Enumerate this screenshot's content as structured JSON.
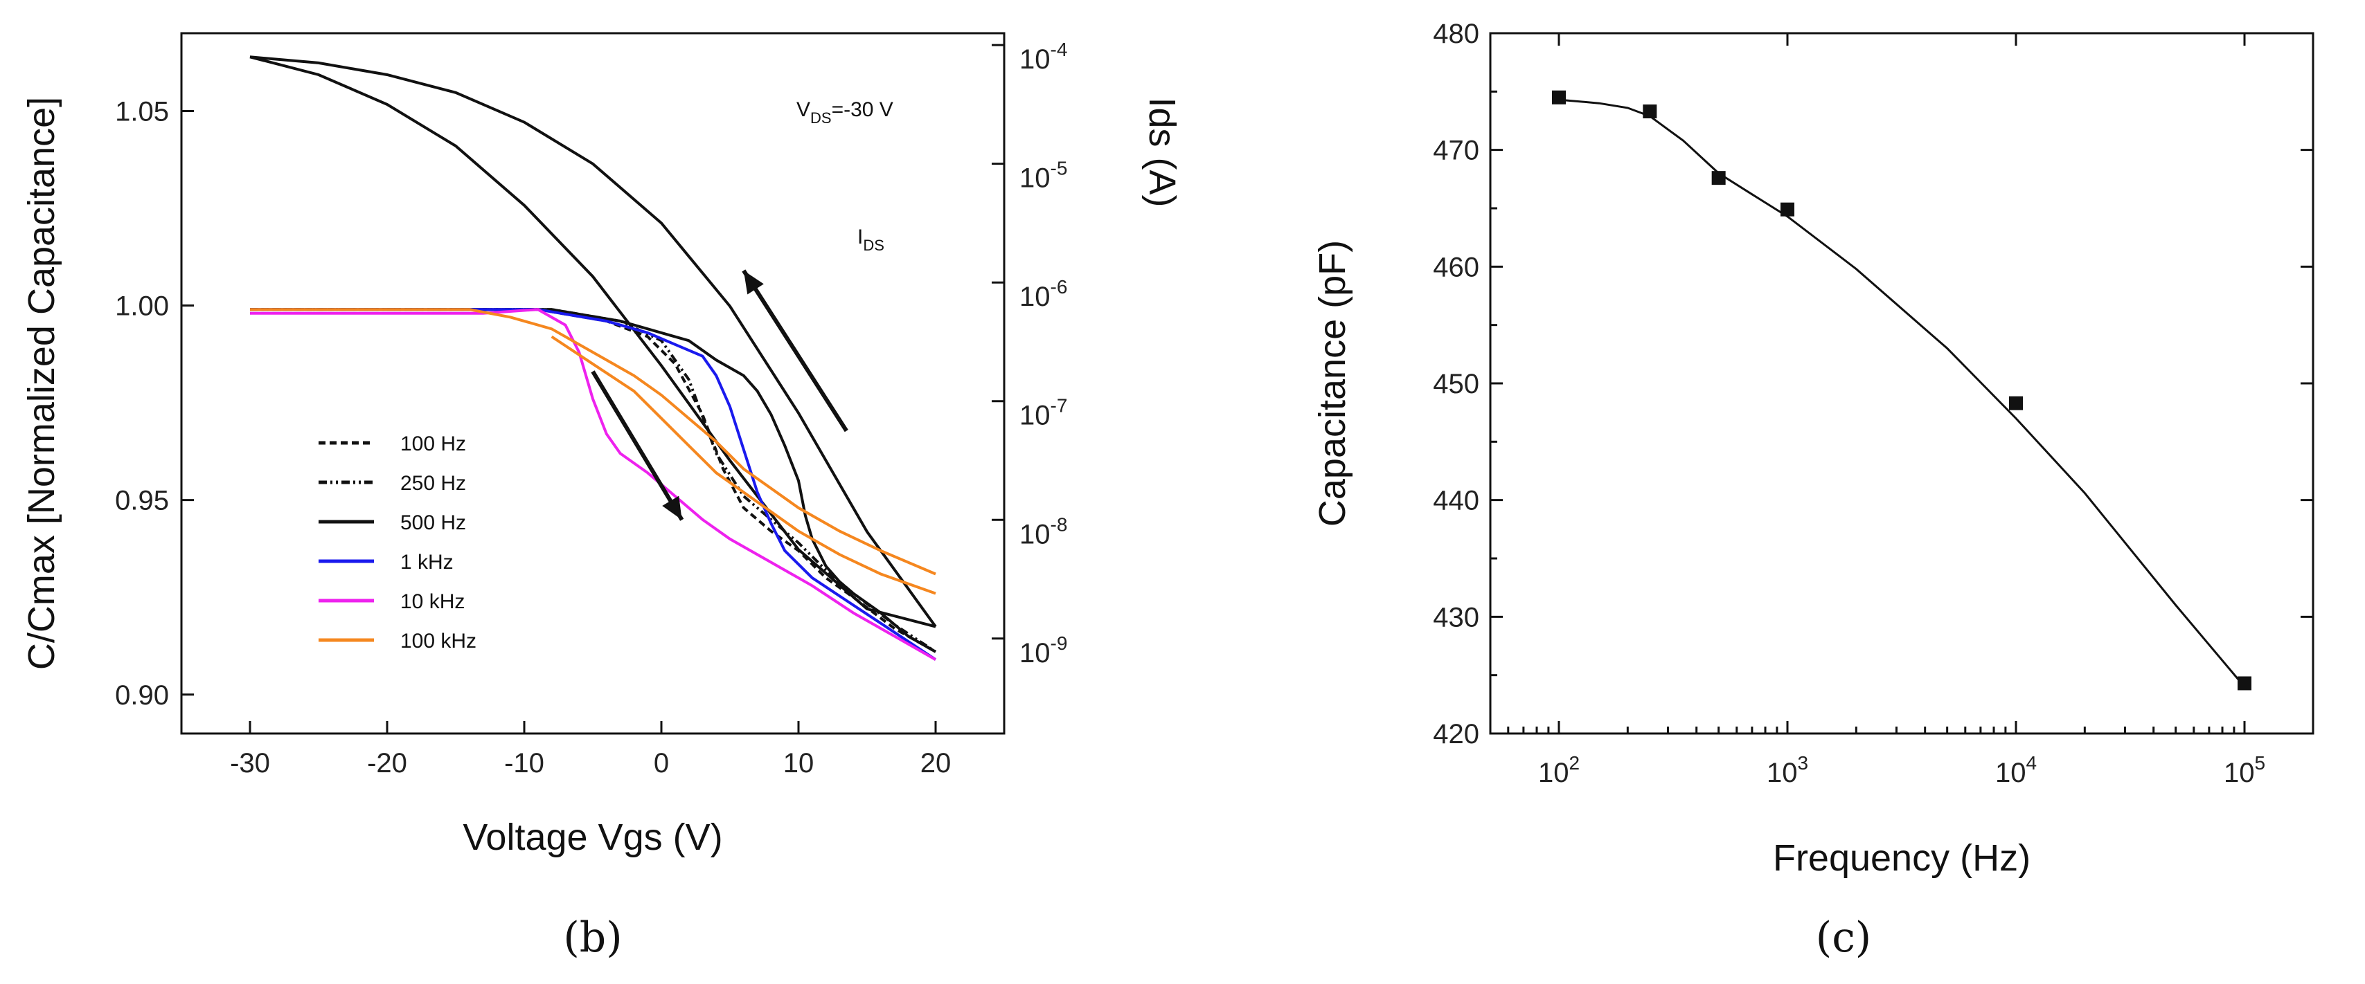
{
  "chart_data": [
    {
      "panel": "b",
      "type": "line",
      "xlabel": "Voltage Vgs (V)",
      "ylabel": "C/Cmax [Normalized Capacitance]",
      "y2label": "Ids (A)",
      "xlim": [
        -35,
        25
      ],
      "ylim": [
        0.89,
        1.07
      ],
      "xticks": [
        -30,
        -20,
        -10,
        0,
        10,
        20
      ],
      "yticks": [
        0.9,
        0.95,
        1.0,
        1.05
      ],
      "ytick_labels": [
        "0.90",
        "0.95",
        "1.00",
        "1.05"
      ],
      "y2lim_log": [
        -9.8,
        -3.9
      ],
      "y2ticks": [
        {
          "base": "10",
          "exp": "-4",
          "v": -4
        },
        {
          "base": "10",
          "exp": "-5",
          "v": -5
        },
        {
          "base": "10",
          "exp": "-6",
          "v": -6
        },
        {
          "base": "10",
          "exp": "-7",
          "v": -7
        },
        {
          "base": "10",
          "exp": "-8",
          "v": -8
        },
        {
          "base": "10",
          "exp": "-9",
          "v": -9
        }
      ],
      "annotation_vds": {
        "main": "V",
        "sub": "DS",
        "rest": "=-30 V"
      },
      "annotation_ids": {
        "main": "I",
        "sub": "DS"
      },
      "series": [
        {
          "name": "100 Hz",
          "color": "#111111",
          "dash": "10,6",
          "x": [
            -30,
            -16,
            -9,
            -4,
            -1,
            1,
            3,
            4.5,
            6,
            8,
            10,
            12,
            14,
            17,
            20
          ],
          "y": [
            0.999,
            0.999,
            0.999,
            0.996,
            0.992,
            0.985,
            0.972,
            0.958,
            0.948,
            0.942,
            0.937,
            0.93,
            0.925,
            0.917,
            0.911
          ]
        },
        {
          "name": "250 Hz",
          "color": "#111111",
          "dash": "12,5,3,5,3,5",
          "x": [
            -30,
            -16,
            -8,
            -3,
            0,
            2,
            4,
            6,
            8,
            10,
            12,
            14,
            17,
            20
          ],
          "y": [
            0.999,
            0.999,
            0.999,
            0.996,
            0.991,
            0.981,
            0.962,
            0.951,
            0.945,
            0.939,
            0.932,
            0.926,
            0.918,
            0.911
          ]
        },
        {
          "name": "500 Hz",
          "color": "#111111",
          "dash": "",
          "x": [
            -30,
            -14,
            -8,
            -3,
            0,
            2,
            4,
            5,
            6,
            7,
            8,
            9,
            10,
            10.5,
            11,
            12,
            13,
            14,
            16,
            18,
            20
          ],
          "y": [
            0.999,
            0.999,
            0.999,
            0.996,
            0.993,
            0.991,
            0.986,
            0.984,
            0.982,
            0.978,
            0.972,
            0.964,
            0.955,
            0.946,
            0.94,
            0.933,
            0.929,
            0.926,
            0.921,
            0.915,
            0.911
          ]
        },
        {
          "name": "1 kHz",
          "color": "#1a1aee",
          "dash": "",
          "x": [
            -30,
            -15,
            -9,
            -4,
            -1,
            1,
            3,
            4,
            5,
            6,
            7,
            8,
            9,
            11,
            14,
            17,
            20
          ],
          "y": [
            0.999,
            0.999,
            0.999,
            0.996,
            0.993,
            0.99,
            0.987,
            0.982,
            0.974,
            0.963,
            0.952,
            0.944,
            0.937,
            0.93,
            0.923,
            0.916,
            0.909
          ]
        },
        {
          "name": "10 kHz",
          "color": "#ee22ee",
          "dash": "",
          "x": [
            -30,
            -13,
            -9,
            -7,
            -6,
            -5,
            -4,
            -3,
            -1,
            1,
            3,
            5,
            8,
            11,
            14,
            17,
            20
          ],
          "y": [
            0.998,
            0.998,
            0.999,
            0.995,
            0.988,
            0.976,
            0.967,
            0.962,
            0.957,
            0.951,
            0.945,
            0.94,
            0.934,
            0.928,
            0.921,
            0.915,
            0.909
          ]
        },
        {
          "name": "100 kHz",
          "color": "#f5871f",
          "dash": "",
          "x": [
            -30,
            -20,
            -14,
            -11,
            -8,
            -5,
            -2,
            0,
            2,
            4,
            6,
            8,
            10,
            13,
            16,
            20
          ],
          "y": [
            0.999,
            0.999,
            0.999,
            0.997,
            0.994,
            0.988,
            0.982,
            0.977,
            0.971,
            0.965,
            0.958,
            0.953,
            0.948,
            0.942,
            0.937,
            0.931
          ]
        }
      ],
      "extra_curves": [
        {
          "role": "100 kHz return sweep",
          "color": "#f5871f",
          "x": [
            -8,
            -5,
            -2,
            0,
            2,
            4,
            6,
            8,
            10,
            13,
            16,
            20
          ],
          "y": [
            0.992,
            0.985,
            0.978,
            0.971,
            0.964,
            0.957,
            0.952,
            0.947,
            0.942,
            0.936,
            0.931,
            0.926
          ]
        }
      ],
      "ids_curves": [
        {
          "role": "forward sweep",
          "color": "#111111",
          "x": [
            -30,
            -25,
            -20,
            -15,
            -10,
            -5,
            0,
            5,
            10,
            15,
            20
          ],
          "y_log": [
            -4.1,
            -4.25,
            -4.5,
            -4.85,
            -5.35,
            -5.95,
            -6.7,
            -7.5,
            -8.25,
            -8.75,
            -8.9
          ]
        },
        {
          "role": "reverse sweep",
          "color": "#111111",
          "x": [
            -30,
            -25,
            -20,
            -15,
            -10,
            -5,
            0,
            5,
            10,
            15,
            20
          ],
          "y_log": [
            -4.1,
            -4.15,
            -4.25,
            -4.4,
            -4.65,
            -5.0,
            -5.5,
            -6.2,
            -7.1,
            -8.1,
            -8.9
          ]
        }
      ],
      "arrows": [
        {
          "direction": "forward",
          "from": [
            -5,
            -6.75
          ],
          "to": [
            1.5,
            -8.0
          ]
        },
        {
          "direction": "reverse",
          "from": [
            13.5,
            -7.25
          ],
          "to": [
            6,
            -5.9
          ]
        }
      ]
    },
    {
      "panel": "c",
      "type": "scatter",
      "xlabel": "Frequency (Hz)",
      "ylabel": "Capacitance (pF)",
      "xscale": "log",
      "xlim_log": [
        1.7,
        5.3
      ],
      "ylim": [
        420,
        480
      ],
      "xticks": [
        {
          "base": "10",
          "exp": "2",
          "v": 2
        },
        {
          "base": "10",
          "exp": "3",
          "v": 3
        },
        {
          "base": "10",
          "exp": "4",
          "v": 4
        },
        {
          "base": "10",
          "exp": "5",
          "v": 5
        }
      ],
      "yticks": [
        420,
        430,
        440,
        450,
        460,
        470,
        480
      ],
      "points": {
        "x": [
          100,
          250,
          500,
          1000,
          10000,
          100000
        ],
        "y": [
          474.5,
          473.3,
          467.6,
          464.9,
          448.3,
          424.3
        ]
      },
      "fit": {
        "x": [
          100,
          150,
          200,
          250,
          350,
          500,
          700,
          1000,
          2000,
          5000,
          10000,
          20000,
          50000,
          100000
        ],
        "y": [
          474.3,
          474.0,
          473.6,
          472.9,
          470.8,
          468.0,
          466.2,
          464.3,
          459.8,
          453.0,
          447.0,
          440.6,
          431.0,
          424.0
        ]
      }
    }
  ],
  "panel_labels": {
    "b": "(b)",
    "c": "(c)"
  }
}
